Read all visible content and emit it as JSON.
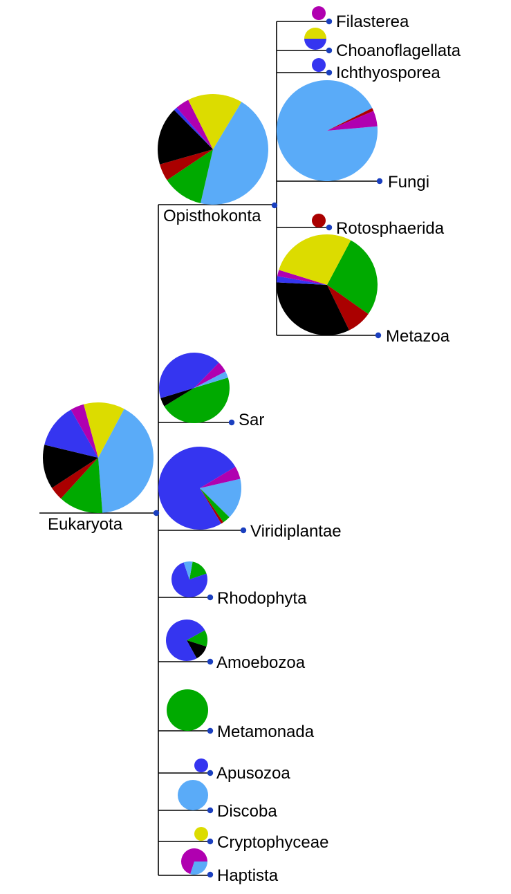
{
  "colors": {
    "sky": "#5aabf8",
    "green": "#00aa00",
    "red": "#aa0000",
    "black": "#000000",
    "blue": "#3535f0",
    "purple": "#b000b0",
    "yellow": "#dcdc00",
    "node": "#1a3fbf"
  },
  "nodes": [
    {
      "id": "eukaryota",
      "label": "Eukaryota",
      "composition": [
        {
          "color": "sky",
          "fraction": 0.41
        },
        {
          "color": "green",
          "fraction": 0.13
        },
        {
          "color": "red",
          "fraction": 0.04
        },
        {
          "color": "black",
          "fraction": 0.13
        },
        {
          "color": "blue",
          "fraction": 0.13
        },
        {
          "color": "purple",
          "fraction": 0.04
        },
        {
          "color": "yellow",
          "fraction": 0.12
        }
      ]
    },
    {
      "id": "opisthokonta",
      "label": "Opisthokonta",
      "composition": [
        {
          "color": "sky",
          "fraction": 0.45
        },
        {
          "color": "green",
          "fraction": 0.12
        },
        {
          "color": "red",
          "fraction": 0.05
        },
        {
          "color": "black",
          "fraction": 0.17
        },
        {
          "color": "blue",
          "fraction": 0.01
        },
        {
          "color": "purple",
          "fraction": 0.04
        },
        {
          "color": "yellow",
          "fraction": 0.16
        }
      ]
    },
    {
      "id": "filasterea",
      "label": "Filasterea",
      "composition": [
        {
          "color": "purple",
          "fraction": 1.0
        }
      ]
    },
    {
      "id": "choanoflagellata",
      "label": "Choanoflagellata",
      "composition": [
        {
          "color": "blue",
          "fraction": 0.5
        },
        {
          "color": "yellow",
          "fraction": 0.5
        }
      ]
    },
    {
      "id": "ichthyosporea",
      "label": "Ichthyosporea",
      "composition": [
        {
          "color": "blue",
          "fraction": 1.0
        }
      ]
    },
    {
      "id": "fungi",
      "label": "Fungi",
      "composition": [
        {
          "color": "sky",
          "fraction": 0.94
        },
        {
          "color": "red",
          "fraction": 0.01
        },
        {
          "color": "purple",
          "fraction": 0.05
        }
      ]
    },
    {
      "id": "rotosphaerida",
      "label": "Rotosphaerida",
      "composition": [
        {
          "color": "red",
          "fraction": 1.0
        }
      ]
    },
    {
      "id": "metazoa",
      "label": "Metazoa",
      "composition": [
        {
          "color": "green",
          "fraction": 0.27
        },
        {
          "color": "red",
          "fraction": 0.08
        },
        {
          "color": "black",
          "fraction": 0.33
        },
        {
          "color": "blue",
          "fraction": 0.02
        },
        {
          "color": "purple",
          "fraction": 0.02
        },
        {
          "color": "yellow",
          "fraction": 0.28
        }
      ]
    },
    {
      "id": "sar",
      "label": "Sar",
      "composition": [
        {
          "color": "green",
          "fraction": 0.46
        },
        {
          "color": "black",
          "fraction": 0.04
        },
        {
          "color": "blue",
          "fraction": 0.42
        },
        {
          "color": "purple",
          "fraction": 0.05
        },
        {
          "color": "sky",
          "fraction": 0.03
        }
      ]
    },
    {
      "id": "viridiplantae",
      "label": "Viridiplantae",
      "composition": [
        {
          "color": "sky",
          "fraction": 0.16
        },
        {
          "color": "green",
          "fraction": 0.03
        },
        {
          "color": "red",
          "fraction": 0.01
        },
        {
          "color": "blue",
          "fraction": 0.75
        },
        {
          "color": "purple",
          "fraction": 0.05
        }
      ]
    },
    {
      "id": "rhodophyta",
      "label": "Rhodophyta",
      "composition": [
        {
          "color": "green",
          "fraction": 0.17
        },
        {
          "color": "blue",
          "fraction": 0.75
        },
        {
          "color": "sky",
          "fraction": 0.08
        }
      ]
    },
    {
      "id": "amoebozoa",
      "label": "Amoebozoa",
      "composition": [
        {
          "color": "green",
          "fraction": 0.13
        },
        {
          "color": "black",
          "fraction": 0.12
        },
        {
          "color": "blue",
          "fraction": 0.75
        }
      ]
    },
    {
      "id": "metamonada",
      "label": "Metamonada",
      "composition": [
        {
          "color": "green",
          "fraction": 1.0
        }
      ]
    },
    {
      "id": "apusozoa",
      "label": "Apusozoa",
      "composition": [
        {
          "color": "blue",
          "fraction": 1.0
        }
      ]
    },
    {
      "id": "discoba",
      "label": "Discoba",
      "composition": [
        {
          "color": "sky",
          "fraction": 1.0
        }
      ]
    },
    {
      "id": "cryptophyceae",
      "label": "Cryptophyceae",
      "composition": [
        {
          "color": "yellow",
          "fraction": 1.0
        }
      ]
    },
    {
      "id": "haptista",
      "label": "Haptista",
      "composition": [
        {
          "color": "sky",
          "fraction": 0.3
        },
        {
          "color": "purple",
          "fraction": 0.7
        }
      ]
    }
  ]
}
